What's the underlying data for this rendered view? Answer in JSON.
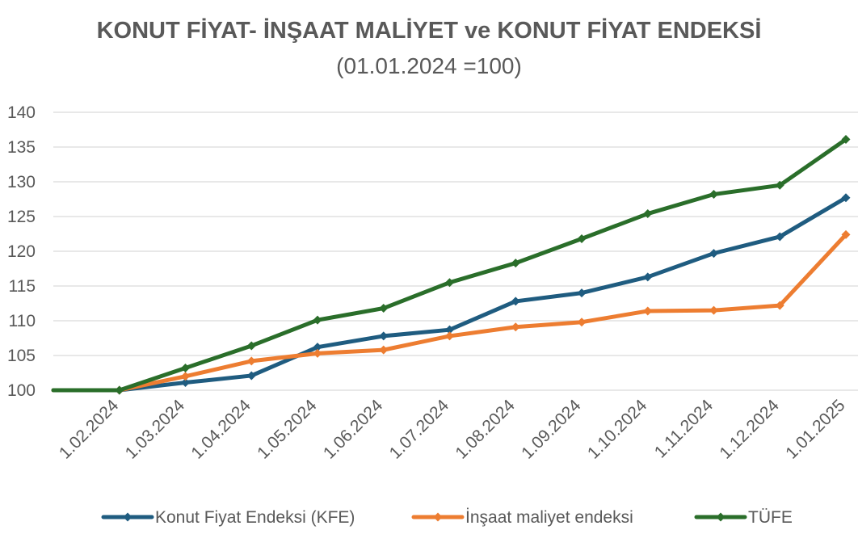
{
  "chart_data": {
    "type": "line",
    "title": "KONUT FİYAT- İNŞAAT MALİYET ve KONUT FİYAT ENDEKSİ",
    "subtitle": "(01.01.2024 =100)",
    "x": [
      "",
      "1.02.2024",
      "1.03.2024",
      "1.04.2024",
      "1.05.2024",
      "1.06.2024",
      "1.07.2024",
      "1.08.2024",
      "1.09.2024",
      "1.10.2024",
      "1.11.2024",
      "1.12.2024",
      "1.01.2025"
    ],
    "ylim": [
      100,
      140
    ],
    "yticks": [
      100,
      105,
      110,
      115,
      120,
      125,
      130,
      135,
      140
    ],
    "grid": true,
    "legend_position": "bottom",
    "series": [
      {
        "name": "Konut Fiyat Endeksi (KFE)",
        "color": "#1f5c80",
        "values": [
          100,
          100,
          101.1,
          102.1,
          106.2,
          107.8,
          108.7,
          112.8,
          114.0,
          116.3,
          119.7,
          122.1,
          127.7
        ]
      },
      {
        "name": "İnşaat maliyet endeksi",
        "color": "#ed7d31",
        "values": [
          100,
          100,
          102.0,
          104.2,
          105.3,
          105.8,
          107.8,
          109.1,
          109.8,
          111.4,
          111.5,
          112.2,
          122.4
        ]
      },
      {
        "name": "TÜFE",
        "color": "#2a6e2a",
        "values": [
          100,
          100,
          103.2,
          106.4,
          110.1,
          111.8,
          115.5,
          118.3,
          121.8,
          125.4,
          128.2,
          129.5,
          136.1
        ]
      }
    ]
  }
}
